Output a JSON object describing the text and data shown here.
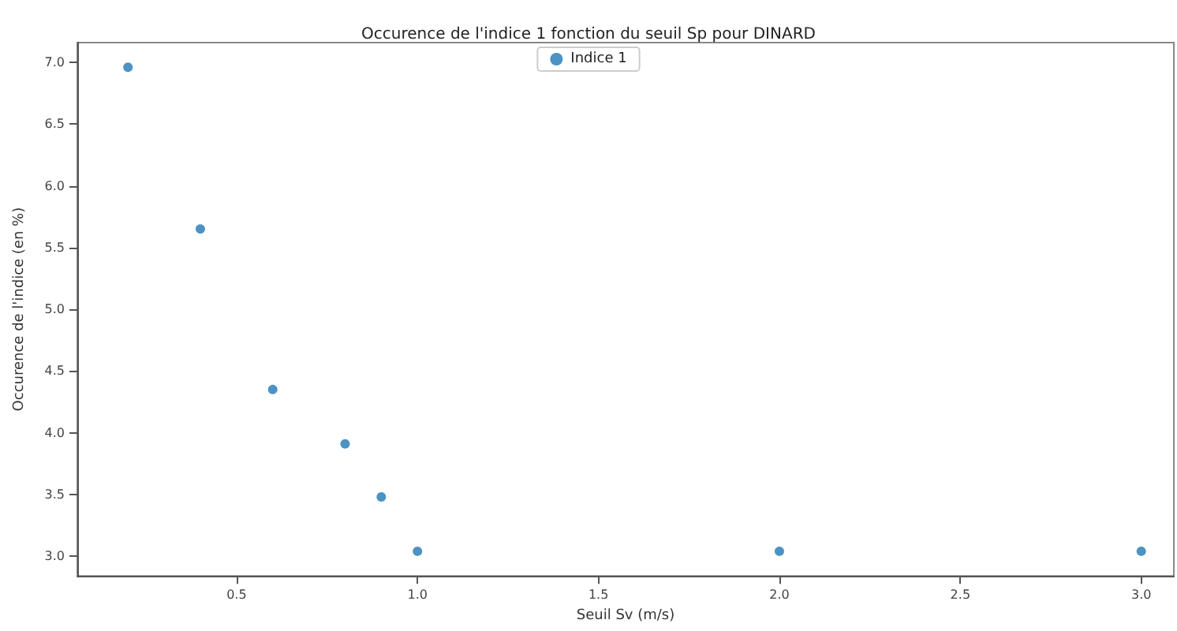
{
  "chart_data": {
    "type": "scatter",
    "title": "Occurence de l'indice 1 fonction du seuil Sp pour DINARD",
    "xlabel": "Seuil Sv (m/s)",
    "ylabel": "Occurence de l'indice (en %)",
    "x": [
      0.2,
      0.4,
      0.6,
      0.8,
      0.9,
      1.0,
      2.0,
      3.0
    ],
    "series": [
      {
        "name": "Indice 1",
        "color": "#1f77b4",
        "values": [
          6.96,
          5.65,
          4.35,
          3.91,
          3.48,
          3.04,
          3.04,
          3.04
        ]
      }
    ],
    "xlim": [
      0.06,
      3.09
    ],
    "xticks": [
      {
        "value": 0.5,
        "label": "0.5"
      },
      {
        "value": 1.0,
        "label": "1.0"
      },
      {
        "value": 1.5,
        "label": "1.5"
      },
      {
        "value": 2.0,
        "label": "2.0"
      },
      {
        "value": 2.5,
        "label": "2.5"
      },
      {
        "value": 3.0,
        "label": "3.0"
      }
    ],
    "ylim": [
      2.84,
      7.16
    ],
    "yticks": [
      {
        "value": 3.0,
        "label": "3.0"
      },
      {
        "value": 3.5,
        "label": "3.5"
      },
      {
        "value": 4.0,
        "label": "4.0"
      },
      {
        "value": 4.5,
        "label": "4.5"
      },
      {
        "value": 5.0,
        "label": "5.0"
      },
      {
        "value": 5.5,
        "label": "5.5"
      },
      {
        "value": 6.0,
        "label": "6.0"
      },
      {
        "value": 6.5,
        "label": "6.5"
      },
      {
        "value": 7.0,
        "label": "7.0"
      }
    ],
    "grid": false,
    "legend": "top",
    "marker": "circle"
  }
}
